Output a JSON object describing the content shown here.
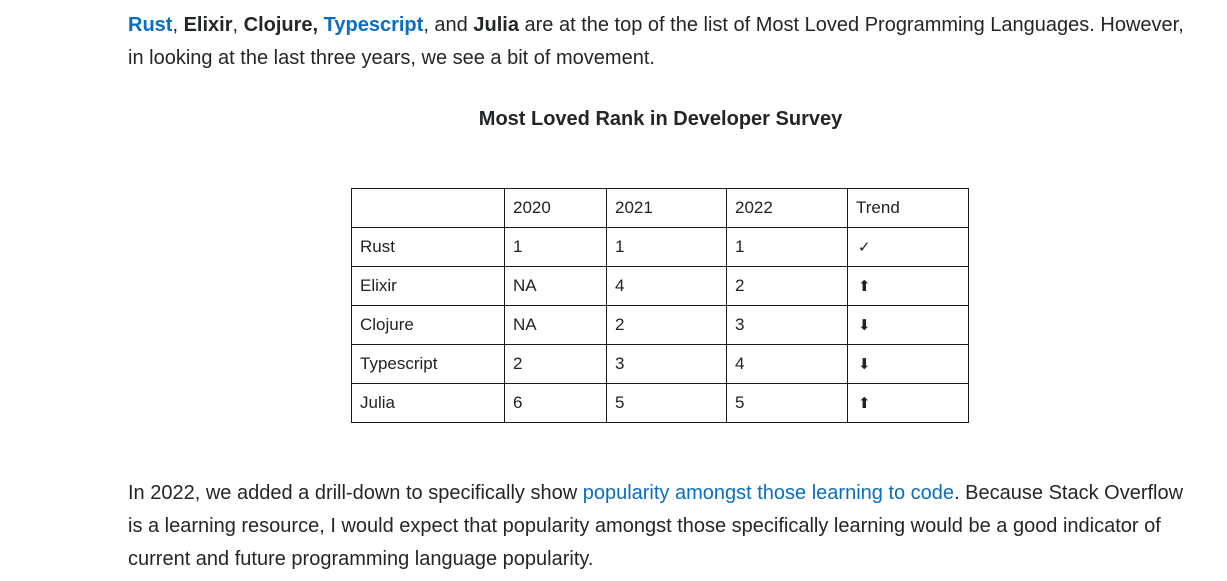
{
  "intro": {
    "rust": "Rust",
    "sep1": ", ",
    "elixir": "Elixir",
    "sep2": ", ",
    "clojure": "Clojure,",
    "sep3": " ",
    "typescript": "Typescript",
    "sep4": ", and ",
    "julia": "Julia",
    "rest": " are at the top of the list of Most Loved Programming Languages. However, in looking at the last three years, we see a bit of movement."
  },
  "table_title": "Most Loved Rank in Developer Survey",
  "table": {
    "headers": [
      "",
      "2020",
      "2021",
      "2022",
      "Trend"
    ],
    "rows": [
      [
        "Rust",
        "1",
        "1",
        "1",
        "✓"
      ],
      [
        "Elixir",
        "NA",
        "4",
        "2",
        "⬆"
      ],
      [
        "Clojure",
        "NA",
        "2",
        "3",
        "⬇"
      ],
      [
        "Typescript",
        "2",
        "3",
        "4",
        "⬇"
      ],
      [
        "Julia",
        "6",
        "5",
        "5",
        "⬆"
      ]
    ]
  },
  "outro": {
    "before": "In 2022, we added a drill-down to specifically show ",
    "link": "popularity amongst those learning to code",
    "after": ". Because Stack Overflow is a learning resource, I would expect that popularity amongst those specifically learning would be a good indicator of current and future programming language popularity."
  },
  "colors": {
    "link": "#0a6dc2",
    "text": "#232629"
  }
}
